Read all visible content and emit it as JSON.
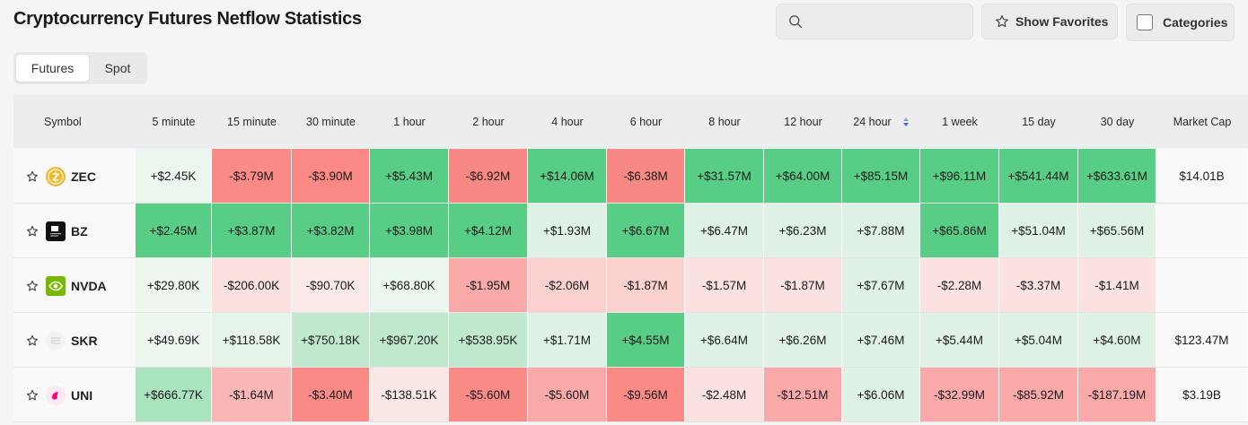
{
  "page_title": "Cryptocurrency Futures Netflow Statistics",
  "search": {
    "placeholder": "",
    "value": ""
  },
  "show_favorites_label": "Show Favorites",
  "categories_label": "Categories",
  "tabs": [
    {
      "label": "Futures",
      "selected": true
    },
    {
      "label": "Spot",
      "selected": false
    }
  ],
  "table": {
    "columns": [
      "Symbol",
      "5 minute",
      "15 minute",
      "30 minute",
      "1 hour",
      "2 hour",
      "4 hour",
      "6 hour",
      "8 hour",
      "12 hour",
      "24 hour",
      "1 week",
      "15 day",
      "30 day",
      "Market Cap"
    ],
    "sorted_column": "24 hour",
    "rows": [
      {
        "symbol": "ZEC",
        "logo_icon": "zcash-logo-icon",
        "values": [
          "+$2.45K",
          "-$3.79M",
          "-$3.90M",
          "+$5.43M",
          "-$6.92M",
          "+$14.06M",
          "-$6.38M",
          "+$31.57M",
          "+$64.00M",
          "+$85.15M",
          "+$96.11M",
          "+$541.44M",
          "+$633.61M"
        ],
        "market_cap": "$14.01B"
      },
      {
        "symbol": "BZ",
        "logo_icon": "bz-logo-icon",
        "values": [
          "+$2.45M",
          "+$3.87M",
          "+$3.82M",
          "+$3.98M",
          "+$4.12M",
          "+$1.93M",
          "+$6.67M",
          "+$6.47M",
          "+$6.23M",
          "+$7.88M",
          "+$65.86M",
          "+$51.04M",
          "+$65.56M"
        ],
        "market_cap": ""
      },
      {
        "symbol": "NVDA",
        "logo_icon": "nvidia-logo-icon",
        "values": [
          "+$29.80K",
          "-$206.00K",
          "-$90.70K",
          "+$68.80K",
          "-$1.95M",
          "-$2.06M",
          "-$1.87M",
          "-$1.57M",
          "-$1.87M",
          "+$7.67M",
          "-$2.28M",
          "-$3.37M",
          "-$1.41M"
        ],
        "market_cap": ""
      },
      {
        "symbol": "SKR",
        "logo_icon": "skr-logo-icon",
        "values": [
          "+$49.69K",
          "+$118.58K",
          "+$750.18K",
          "+$967.20K",
          "+$538.95K",
          "+$1.71M",
          "+$4.55M",
          "+$6.64M",
          "+$6.26M",
          "+$7.46M",
          "+$5.44M",
          "+$5.04M",
          "+$4.60M"
        ],
        "market_cap": "$123.47M"
      },
      {
        "symbol": "UNI",
        "logo_icon": "uniswap-logo-icon",
        "values": [
          "+$666.77K",
          "-$1.64M",
          "-$3.40M",
          "-$138.51K",
          "-$5.60M",
          "-$5.60M",
          "-$9.56M",
          "-$2.48M",
          "-$12.51M",
          "+$6.06M",
          "-$32.99M",
          "-$85.92M",
          "-$187.19M"
        ],
        "market_cap": "$3.19B"
      }
    ],
    "cell_colors": [
      [
        "#eaf6ee",
        "#f98a86",
        "#fa8985",
        "#58cd86",
        "#f88884",
        "#58cd86",
        "#f88884",
        "#58cd86",
        "#58cd86",
        "#58cd86",
        "#58cd86",
        "#58cd86",
        "#58cd86"
      ],
      [
        "#58cd86",
        "#58cd86",
        "#58cd86",
        "#58cd86",
        "#58cd86",
        "#dff2e5",
        "#58cd86",
        "#dff2e5",
        "#dff2e5",
        "#dff2e5",
        "#58cd86",
        "#dff2e5",
        "#dff2e5"
      ],
      [
        "#edf6ef",
        "#fbe0e0",
        "#fbe9e8",
        "#eaf6ee",
        "#f8a9a8",
        "#fbd1d0",
        "#fbd1d0",
        "#fbe2e1",
        "#fbe2e1",
        "#dff2e5",
        "#fbe2e1",
        "#fbe2e1",
        "#fbe2e1"
      ],
      [
        "#edf6ef",
        "#e5f3e9",
        "#c0e8cf",
        "#c0e8cf",
        "#c0e8cf",
        "#dff2e5",
        "#58cd86",
        "#dff2e5",
        "#dff2e5",
        "#dff2e5",
        "#dff2e5",
        "#dff2e5",
        "#dff2e5"
      ],
      [
        "#a9e3c0",
        "#f8b7b5",
        "#f98a86",
        "#fbe7e6",
        "#f98a86",
        "#f8a9a8",
        "#f98a86",
        "#fbe2e1",
        "#f8a9a8",
        "#dff2e5",
        "#f8a9a8",
        "#f8a9a8",
        "#f8a9a8"
      ]
    ]
  }
}
